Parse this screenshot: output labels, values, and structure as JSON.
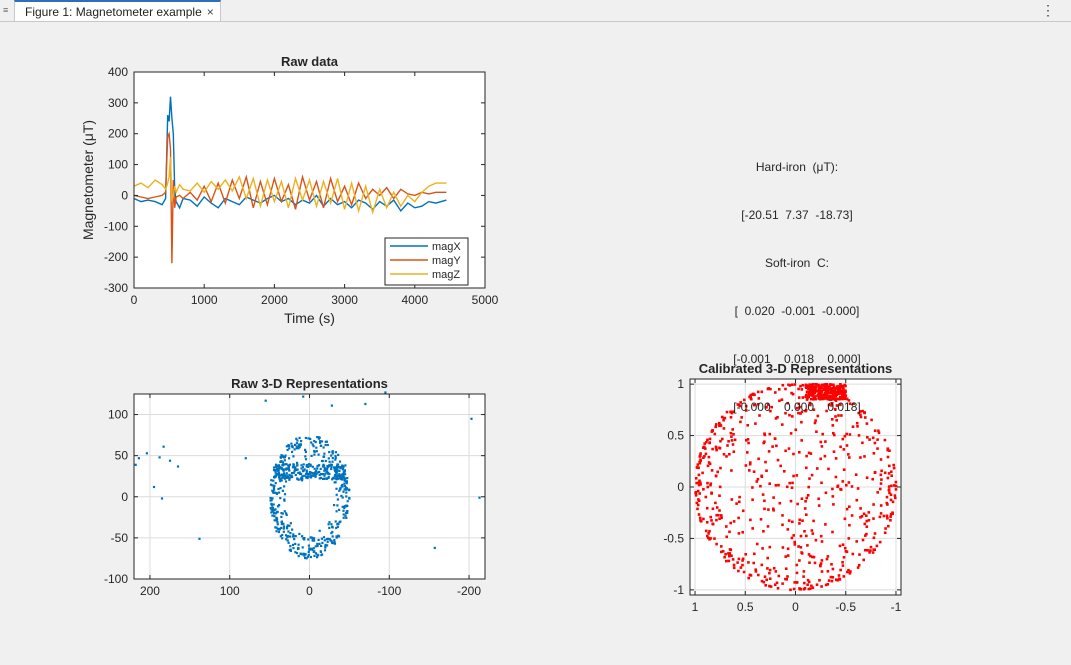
{
  "window": {
    "tab_title": "Figure 1: Magnetometer example",
    "close_glyph": "×",
    "menu_glyph": "⋮",
    "doc_glyph": "≡"
  },
  "annotation": [
    "Hard-iron  (μT):",
    "[-20.51  7.37  -18.73]",
    "Soft-iron  C:",
    "[  0.020  -0.001  -0.000]",
    "[-0.001    0.018    0.000]",
    "[-0.000    0.000    0.018]"
  ],
  "colors": {
    "magX": "#0072bd",
    "magY": "#d95319",
    "magZ": "#edb120",
    "raw3d": "#0072bd",
    "cal3d": "#ff0000"
  },
  "chart_data": [
    {
      "type": "line",
      "title": "Raw data",
      "xlabel": "Time (s)",
      "ylabel": "Magnetometer  (μT)",
      "xlim": [
        0,
        5000
      ],
      "ylim": [
        -300,
        400
      ],
      "xticks": [
        0,
        1000,
        2000,
        3000,
        4000,
        5000
      ],
      "yticks": [
        -300,
        -200,
        -100,
        0,
        100,
        200,
        300,
        400
      ],
      "grid": false,
      "legend": "bottom-right",
      "series": [
        {
          "name": "magX",
          "color": "#0072bd",
          "x": [
            0,
            100,
            200,
            300,
            400,
            450,
            480,
            500,
            520,
            540,
            560,
            580,
            600,
            650,
            700,
            800,
            900,
            1000,
            1100,
            1200,
            1300,
            1400,
            1500,
            1600,
            1700,
            1800,
            1900,
            2000,
            2100,
            2200,
            2300,
            2400,
            2500,
            2600,
            2700,
            2800,
            2900,
            3000,
            3100,
            3200,
            3300,
            3400,
            3500,
            3600,
            3700,
            3800,
            3900,
            4000,
            4100,
            4200,
            4300,
            4450
          ],
          "y": [
            -10,
            -20,
            -15,
            -20,
            -30,
            -10,
            260,
            240,
            320,
            250,
            200,
            20,
            -20,
            -40,
            -10,
            -15,
            -35,
            -5,
            -25,
            -40,
            -10,
            -20,
            -30,
            -5,
            -15,
            -25,
            -10,
            0,
            -20,
            -10,
            -30,
            -15,
            -25,
            0,
            -35,
            -10,
            -30,
            -20,
            -40,
            -15,
            -25,
            -45,
            -20,
            -35,
            -15,
            -50,
            -25,
            -40,
            -35,
            -20,
            -25,
            -15
          ]
        },
        {
          "name": "magY",
          "color": "#d95319",
          "x": [
            0,
            100,
            200,
            300,
            400,
            450,
            480,
            500,
            520,
            540,
            560,
            580,
            600,
            650,
            700,
            800,
            900,
            1000,
            1100,
            1200,
            1300,
            1400,
            1500,
            1600,
            1700,
            1800,
            1900,
            2000,
            2100,
            2200,
            2300,
            2400,
            2500,
            2600,
            2700,
            2800,
            2900,
            3000,
            3100,
            3200,
            3300,
            3400,
            3500,
            3600,
            3700,
            3800,
            3900,
            4000,
            4100,
            4200,
            4300,
            4450
          ],
          "y": [
            0,
            -5,
            -10,
            -5,
            0,
            10,
            190,
            200,
            150,
            -220,
            50,
            -40,
            -5,
            0,
            -10,
            10,
            -15,
            30,
            -20,
            40,
            -25,
            50,
            -10,
            60,
            -40,
            45,
            -30,
            55,
            -20,
            35,
            -45,
            60,
            -15,
            45,
            -40,
            55,
            -20,
            30,
            -30,
            40,
            -10,
            20,
            0,
            25,
            -10,
            20,
            5,
            0,
            10,
            5,
            10,
            10
          ]
        },
        {
          "name": "magZ",
          "color": "#edb120",
          "x": [
            0,
            100,
            200,
            300,
            400,
            450,
            480,
            500,
            520,
            540,
            560,
            580,
            600,
            650,
            700,
            800,
            900,
            1000,
            1100,
            1200,
            1300,
            1400,
            1500,
            1600,
            1700,
            1800,
            1900,
            2000,
            2100,
            2200,
            2300,
            2400,
            2500,
            2600,
            2700,
            2800,
            2900,
            3000,
            3100,
            3200,
            3300,
            3400,
            3500,
            3600,
            3700,
            3800,
            3900,
            4000,
            4100,
            4200,
            4300,
            4450
          ],
          "y": [
            30,
            40,
            25,
            50,
            35,
            20,
            40,
            60,
            125,
            -20,
            0,
            30,
            10,
            35,
            20,
            15,
            40,
            10,
            45,
            20,
            50,
            15,
            60,
            -10,
            55,
            -35,
            50,
            -20,
            45,
            -40,
            55,
            -15,
            50,
            -35,
            45,
            -25,
            55,
            -45,
            40,
            -50,
            30,
            -55,
            20,
            -40,
            10,
            -35,
            0,
            -20,
            10,
            30,
            40,
            40
          ]
        }
      ]
    },
    {
      "type": "scatter",
      "title": "Raw 3-D Representations",
      "xlim": [
        220,
        -220
      ],
      "ylim": [
        -100,
        125
      ],
      "xticks": [
        200,
        100,
        0,
        -100,
        -200
      ],
      "yticks": [
        -100,
        -50,
        0,
        50,
        100
      ],
      "grid": true,
      "color": "#0072bd",
      "ring": {
        "cx": 0,
        "cy": 0,
        "rx": 50,
        "ry": 75,
        "n": 650
      },
      "outliers": [
        [
          55,
          117
        ],
        [
          8,
          122
        ],
        [
          -28,
          111
        ],
        [
          -70,
          113
        ],
        [
          -95,
          127
        ],
        [
          -203,
          95
        ],
        [
          -213,
          -1
        ],
        [
          -223,
          34
        ],
        [
          -157,
          -62
        ],
        [
          138,
          -51
        ],
        [
          185,
          -2
        ],
        [
          195,
          12
        ],
        [
          175,
          44
        ],
        [
          165,
          37
        ],
        [
          188,
          48
        ],
        [
          183,
          61
        ],
        [
          204,
          53
        ],
        [
          214,
          47
        ],
        [
          218,
          39
        ],
        [
          -52,
          -103
        ],
        [
          80,
          47
        ]
      ]
    },
    {
      "type": "scatter",
      "title": "Calibrated 3-D Representations",
      "xlim": [
        1.05,
        -1.05
      ],
      "ylim": [
        -1.05,
        1.05
      ],
      "xticks": [
        1,
        0.5,
        0,
        -0.5,
        -1
      ],
      "yticks": [
        1,
        0.5,
        0,
        -0.5,
        -1
      ],
      "grid": true,
      "color": "#ff0000",
      "sphere": {
        "radius": 1,
        "n": 900
      }
    }
  ]
}
